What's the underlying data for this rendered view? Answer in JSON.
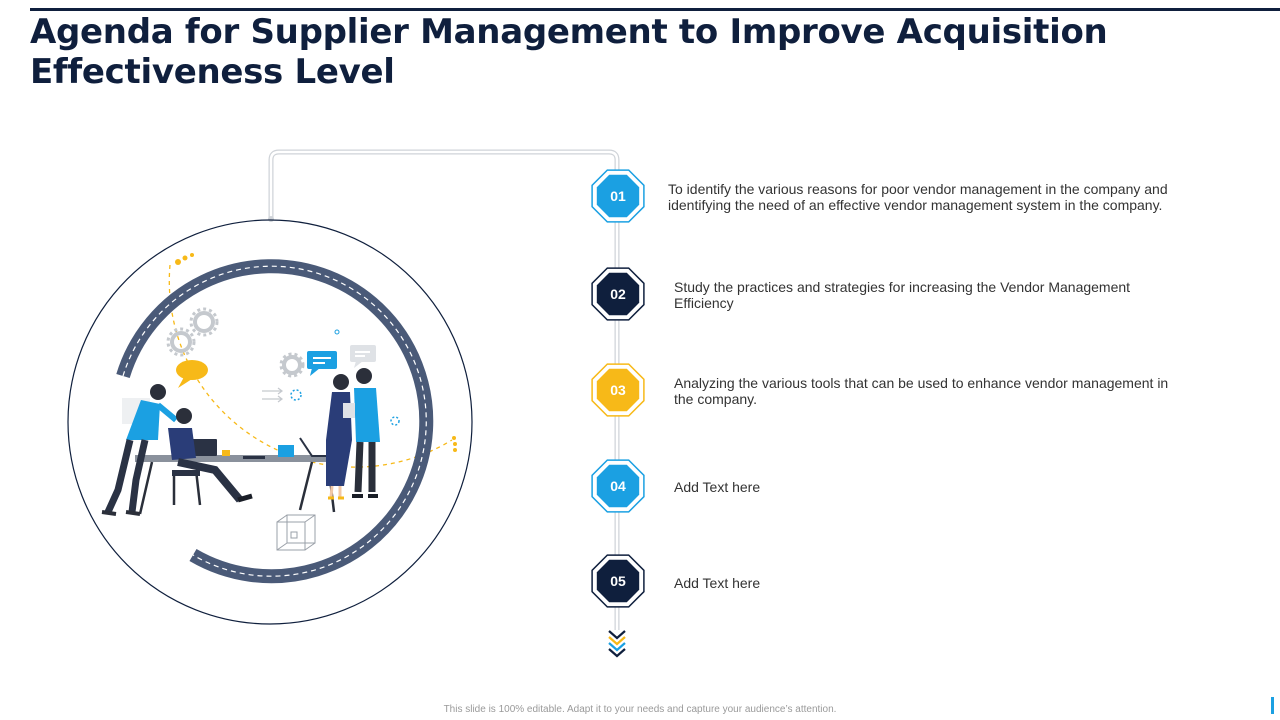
{
  "title": "Agenda for Supplier Management to Improve Acquisition Effectiveness Level",
  "colors": {
    "navy": "#0f1f3d",
    "blue": "#1ba0e2",
    "yellow": "#f7b918",
    "grey": "#cfd3d8"
  },
  "agenda_items": [
    {
      "number": "01",
      "badge_color": "blue",
      "text": "To identify the various reasons for poor vendor management in the company and identifying the need of an effective vendor management system in the company."
    },
    {
      "number": "02",
      "badge_color": "navy",
      "text": "Study the practices and strategies for increasing the Vendor Management Efficiency"
    },
    {
      "number": "03",
      "badge_color": "yellow",
      "text": "Analyzing the various tools that can be used to enhance vendor management in the company."
    },
    {
      "number": "04",
      "badge_color": "blue",
      "text": "Add Text here"
    },
    {
      "number": "05",
      "badge_color": "navy",
      "text": "Add Text here"
    }
  ],
  "illustration": {
    "icons": [
      "gear-icon",
      "chat-bubble-icon",
      "laptop-icon",
      "cube-icon",
      "arrows-icon"
    ],
    "people": [
      "woman-pointing",
      "man-at-laptop",
      "woman-presenting",
      "man-with-clipboard"
    ]
  },
  "footer": "This slide is 100% editable. Adapt it to your needs and capture your audience’s attention."
}
